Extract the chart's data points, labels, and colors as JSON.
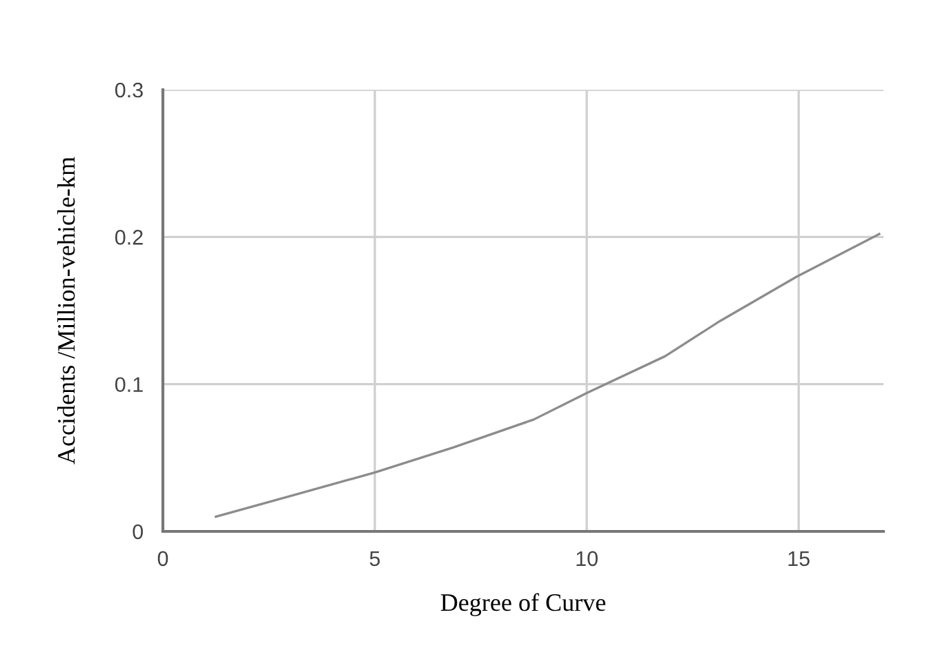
{
  "chart_data": {
    "type": "line",
    "xlabel": "Degree of Curve",
    "ylabel": "Accidents /Million-vehicle-km",
    "x": [
      1.25,
      3,
      5,
      6.85,
      8.75,
      10,
      11.85,
      13.15,
      14.95,
      16.9
    ],
    "series": [
      {
        "color": "#8c8c8c",
        "values": [
          0.01,
          0.024,
          0.04,
          0.057,
          0.076,
          0.094,
          0.119,
          0.143,
          0.173,
          0.202
        ]
      }
    ],
    "xlim": [
      0,
      17
    ],
    "ylim": [
      0,
      0.3
    ],
    "xticks": [
      0,
      5,
      10,
      15
    ],
    "yticks": [
      0,
      0.1,
      0.2,
      0.3
    ],
    "grid": true,
    "marker": "none",
    "line_style": "solid"
  }
}
